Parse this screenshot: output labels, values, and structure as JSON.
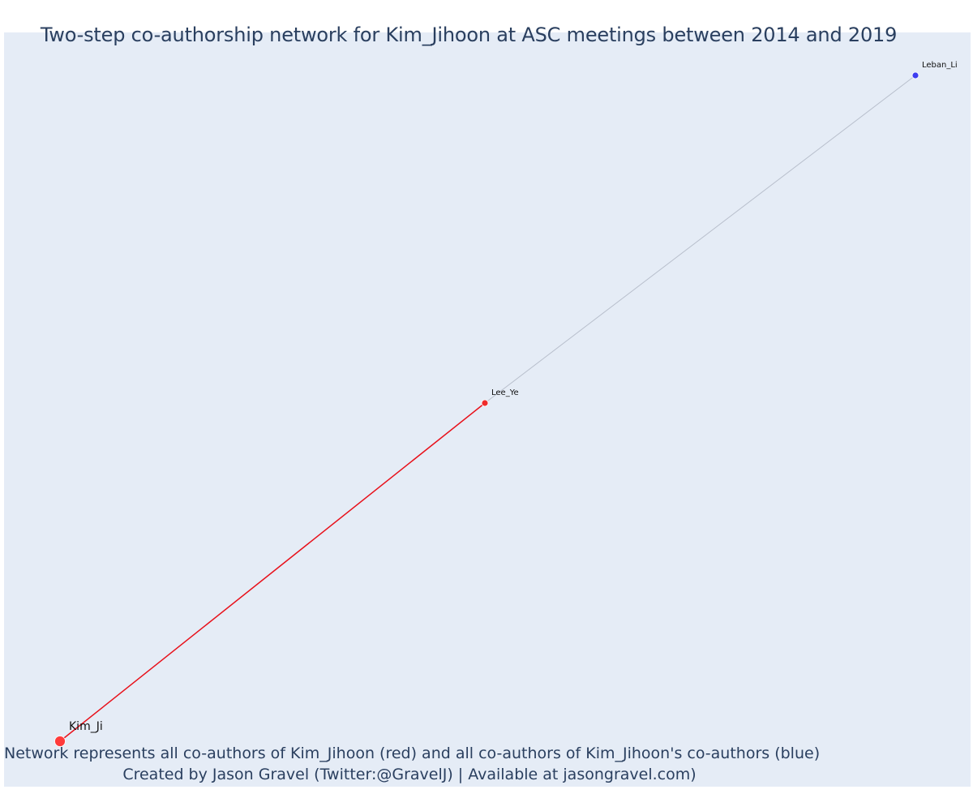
{
  "title": "Two-step co-authorship network for Kim_Jihoon at ASC meetings between 2014 and 2019",
  "caption_line1": "Network represents all co-authors of Kim_Jihoon (red) and all co-authors of Kim_Jihoon's co-authors (blue)",
  "caption_line2": "Created by Jason Gravel (Twitter:@GravelJ) | Available at jasongravel.com)",
  "colors": {
    "plot_bg": "#e5ecf6",
    "focal": "#ff3b3b",
    "coauthor": "#ef2b2b",
    "second_step": "#3d3df0",
    "direct_edge": "#e8101a",
    "indirect_edge": "#b8bfcc",
    "text": "#2a3f5f"
  },
  "network": {
    "nodes": [
      {
        "id": "kim",
        "label": "Kim_Ji",
        "group": "focal"
      },
      {
        "id": "lee",
        "label": "Lee_Ye",
        "group": "coauthor"
      },
      {
        "id": "leban",
        "label": "Leban_Li",
        "group": "second_step"
      }
    ],
    "edges": [
      {
        "source": "kim",
        "target": "lee",
        "type": "direct"
      },
      {
        "source": "lee",
        "target": "leban",
        "type": "indirect"
      }
    ]
  }
}
